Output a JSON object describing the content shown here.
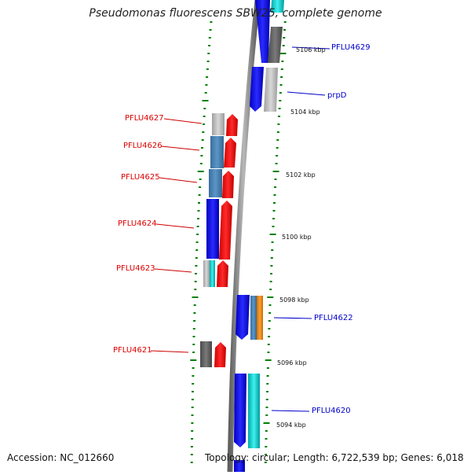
{
  "title": "Pseudomonas fluorescens SBW25, complete genome",
  "footer": {
    "accession": "Accession: NC_012660",
    "stats": "Topology: circular; Length: 6,722,539 bp; Genes: 6,018"
  },
  "scale_labels": [
    "5106 kbp",
    "5104 kbp",
    "5102 kbp",
    "5100 kbp",
    "5098 kbp",
    "5096 kbp",
    "5094 kbp"
  ],
  "genes_left": [
    "PFLU4627",
    "PFLU4626",
    "PFLU4625",
    "PFLU4624",
    "PFLU4623",
    "PFLU4621"
  ],
  "genes_right": [
    "PFLU4629",
    "prpD",
    "PFLU4622",
    "PFLU4620"
  ],
  "colors": {
    "gene_red": "#ff0000",
    "gene_label_red": "#dd0000",
    "gene_label_blue": "#0000cc",
    "cds_blue": "#0000ff",
    "cds_steelblue": "#4682b4",
    "cds_cyan": "#00cccc",
    "cds_gray": "#666666",
    "cds_lightgray": "#bbbbbb",
    "cds_orange": "#ff8c00",
    "backbone": "#808080",
    "tick_green": "#008000"
  }
}
